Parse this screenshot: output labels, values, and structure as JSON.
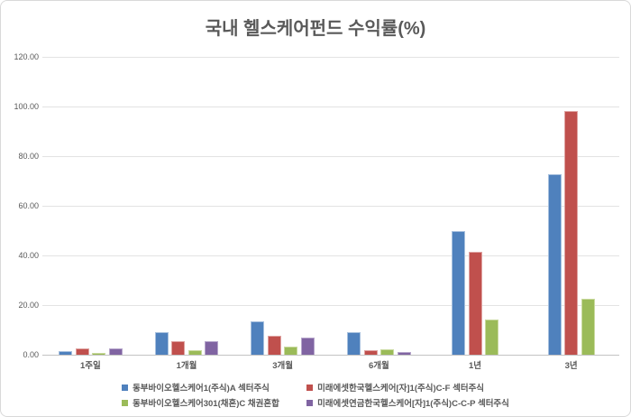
{
  "chart_data": {
    "type": "bar",
    "title": "국내 헬스케어펀드 수익률(%)",
    "categories": [
      "1주일",
      "1개월",
      "3개월",
      "6개월",
      "1년",
      "3년"
    ],
    "series": [
      {
        "name": "동부바이오헬스케어1(주식)A 섹터주식",
        "color": "#4F81BD",
        "border_color": "#A7C0DE",
        "values": [
          1.5,
          9.0,
          13.5,
          9.2,
          49.9,
          72.6
        ]
      },
      {
        "name": "미래에셋한국헬스케어[자]1(주식)C-F 섹터주식",
        "color": "#C0504D",
        "border_color": "#DFA3A1",
        "values": [
          2.7,
          5.6,
          7.6,
          1.7,
          41.4,
          98.2
        ]
      },
      {
        "name": "동부바이오헬스케어301(채혼)C 채권혼합",
        "color": "#9BBB59",
        "border_color": "#C9DA9F",
        "values": [
          0.4,
          1.9,
          3.3,
          2.2,
          14.2,
          22.4
        ]
      },
      {
        "name": "미래에셋연금한국헬스케어[자]1(주식)C-C-P 섹터주식",
        "color": "#8064A2",
        "border_color": "#B6A6CB",
        "values": [
          2.6,
          5.4,
          7.0,
          1.1,
          null,
          null
        ]
      }
    ],
    "xlabel": "",
    "ylabel": "",
    "ylim": [
      0,
      120
    ],
    "ytick_step": 20,
    "ytick_labels": [
      "0.00",
      "20.00",
      "40.00",
      "60.00",
      "80.00",
      "100.00",
      "120.00"
    ],
    "grid": true,
    "legend_position": "bottom"
  }
}
